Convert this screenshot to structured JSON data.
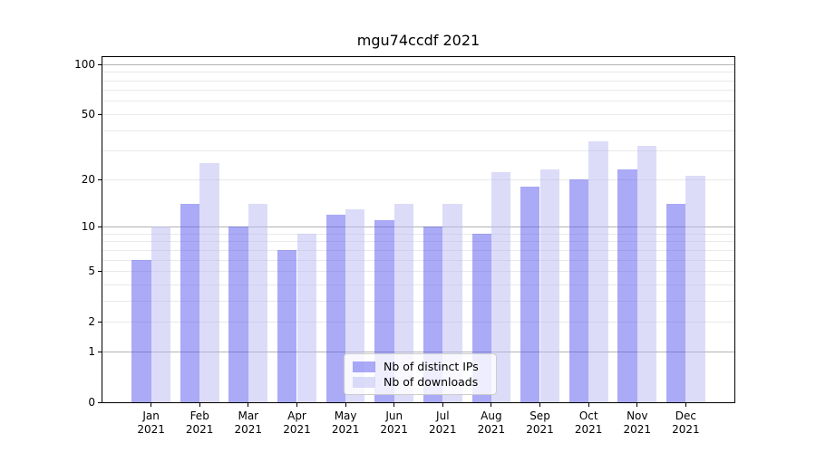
{
  "chart_data": {
    "type": "bar",
    "title": "mgu74ccdf 2021",
    "categories": [
      "Jan",
      "Feb",
      "Mar",
      "Apr",
      "May",
      "Jun",
      "Jul",
      "Aug",
      "Sep",
      "Oct",
      "Nov",
      "Dec"
    ],
    "x_year_label": "2021",
    "series": [
      {
        "name": "Nb of distinct IPs",
        "color": "rgba(85,85,240,0.5)",
        "values": [
          6,
          14,
          10,
          7,
          12,
          11,
          10,
          9,
          18,
          20,
          23,
          14
        ]
      },
      {
        "name": "Nb of downloads",
        "color": "rgba(185,185,243,0.5)",
        "values": [
          10,
          25,
          14,
          9,
          13,
          14,
          14,
          22,
          23,
          34,
          32,
          21
        ]
      }
    ],
    "y_scale": "log10(value+1)",
    "ylim": [
      0,
      110
    ],
    "y_ticks": [
      0,
      1,
      2,
      5,
      10,
      20,
      50,
      100
    ],
    "y_gridlines_minor": [
      2,
      3,
      4,
      5,
      6,
      7,
      8,
      9,
      20,
      30,
      40,
      50,
      60,
      70,
      80,
      90
    ],
    "y_gridlines_major": [
      1,
      10,
      100
    ],
    "grid": "horizontal only",
    "legend_position": "lower center",
    "xlabel": "",
    "ylabel": ""
  }
}
